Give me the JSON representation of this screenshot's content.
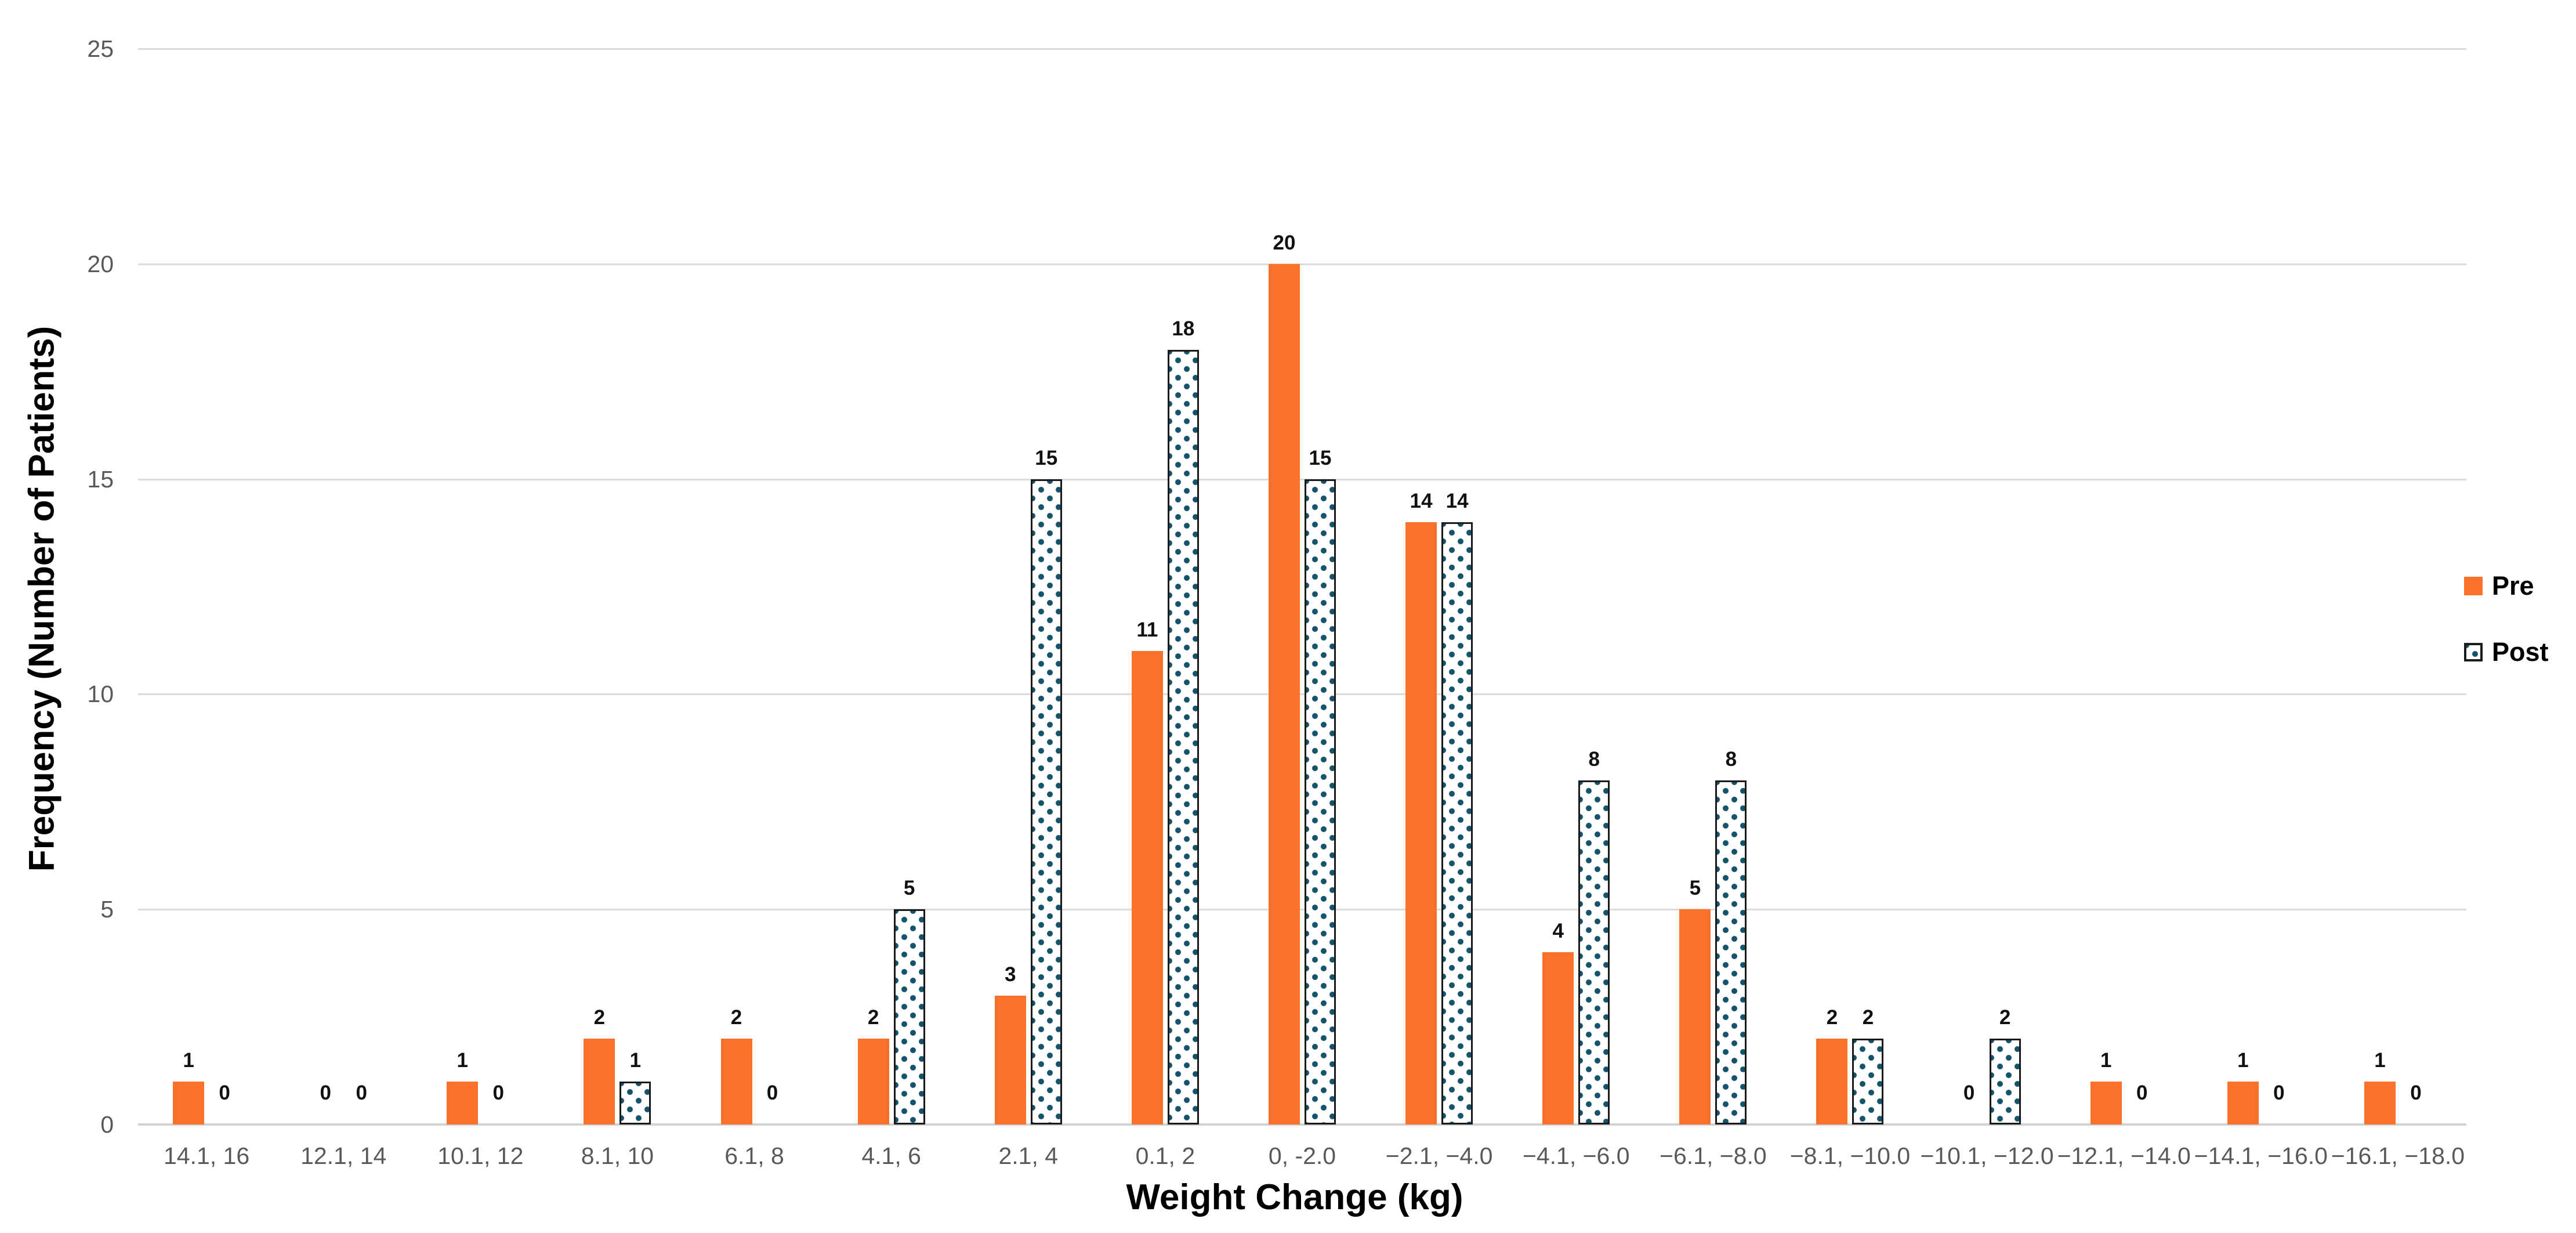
{
  "chart_data": {
    "type": "bar",
    "title": "",
    "xlabel": "Weight Change (kg)",
    "ylabel": "Frequency (Number of Patients)",
    "categories": [
      "14.1, 16",
      "12.1, 14",
      "10.1, 12",
      "8.1, 10",
      "6.1, 8",
      "4.1, 6",
      "2.1, 4",
      "0.1, 2",
      "0, -2.0",
      "−2.1, −4.0",
      "−4.1, −6.0",
      "−6.1, −8.0",
      "−8.1, −10.0",
      "−10.1, −12.0",
      "−12.1, −14.0",
      "−14.1, −16.0",
      "−16.1, −18.0"
    ],
    "series": [
      {
        "name": "Pre",
        "pattern": "solid",
        "color": "#F9712B",
        "values": [
          1,
          0,
          1,
          2,
          2,
          2,
          3,
          11,
          20,
          14,
          4,
          5,
          2,
          0,
          1,
          1,
          1
        ]
      },
      {
        "name": "Post",
        "pattern": "dotted",
        "fill": "#FFFFFF",
        "dot_color": "#14536B",
        "border_color": "#1A1A1A",
        "values": [
          0,
          0,
          0,
          1,
          0,
          5,
          15,
          18,
          15,
          14,
          8,
          8,
          2,
          2,
          0,
          0,
          0
        ]
      }
    ],
    "yticks": [
      0,
      5,
      10,
      15,
      20,
      25
    ],
    "ylim": [
      0,
      25
    ],
    "grid": true,
    "value_labels": true,
    "legend_position": "right",
    "gridline_color": "#DBDBDB",
    "tick_label_color": "#595959"
  }
}
